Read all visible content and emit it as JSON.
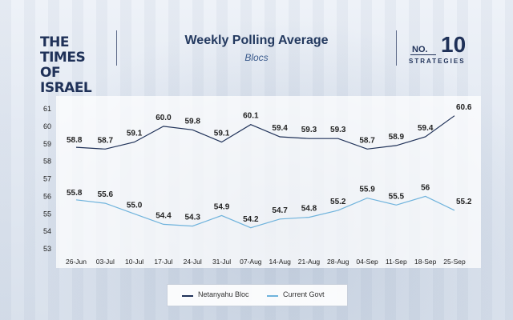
{
  "header": {
    "logo_left": "THE TIMES OF ISRAEL",
    "title": "Weekly Polling Average",
    "subtitle": "Blocs",
    "logo_right": {
      "no": "NO.",
      "num": "10",
      "label": "STRATEGIES"
    }
  },
  "colors": {
    "netanyahu": "#1f3158",
    "govt": "#6fb3dc",
    "text": "#222222"
  },
  "chart_data": {
    "type": "line",
    "title": "Weekly Polling Average",
    "subtitle": "Blocs",
    "categories": [
      "26-Jun",
      "03-Jul",
      "10-Jul",
      "17-Jul",
      "24-Jul",
      "31-Jul",
      "07-Aug",
      "14-Aug",
      "21-Aug",
      "28-Aug",
      "04-Sep",
      "11-Sep",
      "18-Sep",
      "25-Sep"
    ],
    "series": [
      {
        "name": "Netanyahu Bloc",
        "values": [
          58.8,
          58.7,
          59.1,
          60.0,
          59.8,
          59.1,
          60.1,
          59.4,
          59.3,
          59.3,
          58.7,
          58.9,
          59.4,
          60.6
        ],
        "labels": [
          "58.8",
          "58.7",
          "59.1",
          "60.0",
          "59.8",
          "59.1",
          "60.1",
          "59.4",
          "59.3",
          "59.3",
          "58.7",
          "58.9",
          "59.4",
          "60.6"
        ]
      },
      {
        "name": "Current Govt",
        "values": [
          55.8,
          55.6,
          55.0,
          54.4,
          54.3,
          54.9,
          54.2,
          54.7,
          54.8,
          55.2,
          55.9,
          55.5,
          56.0,
          55.2
        ],
        "labels": [
          "55.8",
          "55.6",
          "55.0",
          "54.4",
          "54.3",
          "54.9",
          "54.2",
          "54.7",
          "54.8",
          "55.2",
          "55.9",
          "55.5",
          "56",
          "55.2"
        ]
      }
    ],
    "yticks": [
      53,
      54,
      55,
      56,
      57,
      58,
      59,
      60,
      61
    ],
    "ylim": [
      53,
      61
    ],
    "grid": false,
    "legend": "bottom-center"
  }
}
